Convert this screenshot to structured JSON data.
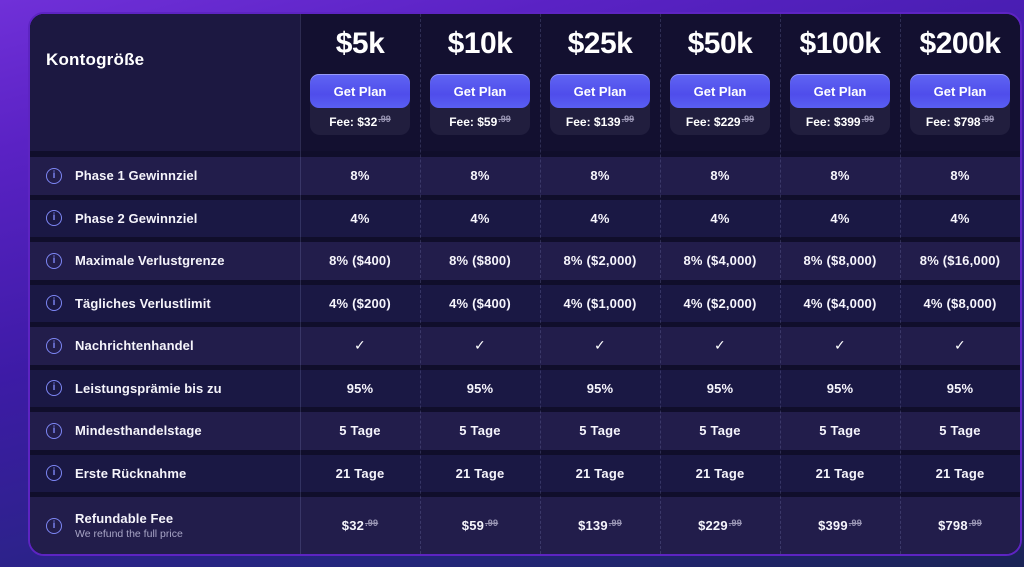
{
  "card": {
    "corner_label": "Kontogröße",
    "plans": [
      {
        "size": "$5k",
        "cta": "Get Plan",
        "fee_text": "Fee: $32",
        "fee_cents": ".99"
      },
      {
        "size": "$10k",
        "cta": "Get Plan",
        "fee_text": "Fee: $59",
        "fee_cents": ".99"
      },
      {
        "size": "$25k",
        "cta": "Get Plan",
        "fee_text": "Fee: $139",
        "fee_cents": ".99"
      },
      {
        "size": "$50k",
        "cta": "Get Plan",
        "fee_text": "Fee: $229",
        "fee_cents": ".99"
      },
      {
        "size": "$100k",
        "cta": "Get Plan",
        "fee_text": "Fee: $399",
        "fee_cents": ".99"
      },
      {
        "size": "$200k",
        "cta": "Get Plan",
        "fee_text": "Fee: $798",
        "fee_cents": ".99"
      }
    ]
  },
  "rows": [
    {
      "label": "Phase 1 Gewinnziel",
      "type": "text",
      "values": [
        "8%",
        "8%",
        "8%",
        "8%",
        "8%",
        "8%"
      ]
    },
    {
      "label": "Phase 2 Gewinnziel",
      "type": "text",
      "values": [
        "4%",
        "4%",
        "4%",
        "4%",
        "4%",
        "4%"
      ]
    },
    {
      "label": "Maximale Verlustgrenze",
      "type": "text",
      "values": [
        "8% ($400)",
        "8% ($800)",
        "8% ($2,000)",
        "8% ($4,000)",
        "8% ($8,000)",
        "8% ($16,000)"
      ]
    },
    {
      "label": "Tägliches Verlustlimit",
      "type": "text",
      "values": [
        "4% ($200)",
        "4% ($400)",
        "4% ($1,000)",
        "4% ($2,000)",
        "4% ($4,000)",
        "4% ($8,000)"
      ]
    },
    {
      "label": "Nachrichtenhandel",
      "type": "check",
      "values": [
        "✓",
        "✓",
        "✓",
        "✓",
        "✓",
        "✓"
      ]
    },
    {
      "label": "Leistungsprämie bis zu",
      "type": "text",
      "values": [
        "95%",
        "95%",
        "95%",
        "95%",
        "95%",
        "95%"
      ]
    },
    {
      "label": "Mindesthandelstage",
      "type": "text",
      "values": [
        "5 Tage",
        "5 Tage",
        "5 Tage",
        "5 Tage",
        "5 Tage",
        "5 Tage"
      ]
    },
    {
      "label": "Erste Rücknahme",
      "type": "text",
      "values": [
        "21 Tage",
        "21 Tage",
        "21 Tage",
        "21 Tage",
        "21 Tage",
        "21 Tage"
      ]
    },
    {
      "label": "Refundable Fee",
      "sublabel": "We refund the full price",
      "type": "price",
      "values": [
        "$32",
        "$59",
        "$139",
        "$229",
        "$399",
        "$798"
      ],
      "cents": ".99"
    }
  ],
  "icons": {
    "info": "info-icon",
    "check": "check-icon"
  },
  "colors": {
    "background_purple": "#7030d8",
    "background_navy": "#1a2355",
    "card_bg": "#14112f",
    "card_border": "#5d24c2",
    "accent_button": "#5556ef",
    "info_icon": "#7d86f4",
    "stripe_light": "#221d4b",
    "stripe_dark": "#1a1844",
    "fee_cents": "#9a96b5"
  }
}
